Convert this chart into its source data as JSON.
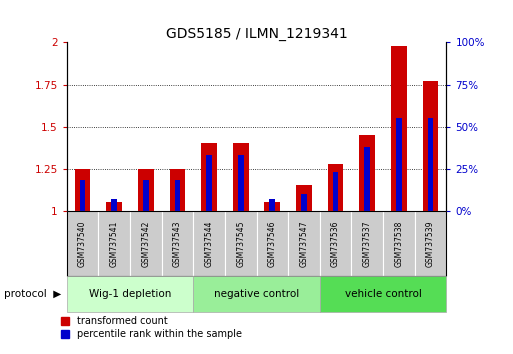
{
  "title": "GDS5185 / ILMN_1219341",
  "samples": [
    "GSM737540",
    "GSM737541",
    "GSM737542",
    "GSM737543",
    "GSM737544",
    "GSM737545",
    "GSM737546",
    "GSM737547",
    "GSM737536",
    "GSM737537",
    "GSM737538",
    "GSM737539"
  ],
  "red_values": [
    1.25,
    1.05,
    1.25,
    1.25,
    1.4,
    1.4,
    1.05,
    1.15,
    1.28,
    1.45,
    1.98,
    1.77
  ],
  "blue_values": [
    1.18,
    1.07,
    1.18,
    1.18,
    1.33,
    1.33,
    1.07,
    1.1,
    1.23,
    1.38,
    1.55,
    1.55
  ],
  "red_color": "#cc0000",
  "blue_color": "#0000cc",
  "ylim_left": [
    1.0,
    2.0
  ],
  "ylim_right": [
    0,
    100
  ],
  "yticks_left": [
    1.0,
    1.25,
    1.5,
    1.75,
    2.0
  ],
  "ytick_labels_left": [
    "1",
    "1.25",
    "1.5",
    "1.75",
    "2"
  ],
  "yticks_right": [
    0,
    25,
    50,
    75,
    100
  ],
  "ytick_labels_right": [
    "0%",
    "25%",
    "50%",
    "75%",
    "100%"
  ],
  "groups": [
    {
      "label": "Wig-1 depletion",
      "start": 0,
      "end": 3,
      "color": "#ccffcc"
    },
    {
      "label": "negative control",
      "start": 4,
      "end": 7,
      "color": "#99ee99"
    },
    {
      "label": "vehicle control",
      "start": 8,
      "end": 11,
      "color": "#55dd55"
    }
  ],
  "protocol_label": "protocol",
  "legend_red": "transformed count",
  "legend_blue": "percentile rank within the sample",
  "bar_width": 0.5,
  "blue_bar_width": 0.18,
  "title_fontsize": 10,
  "sample_label_bg": "#cccccc",
  "dotted_grid_color": "#000000"
}
